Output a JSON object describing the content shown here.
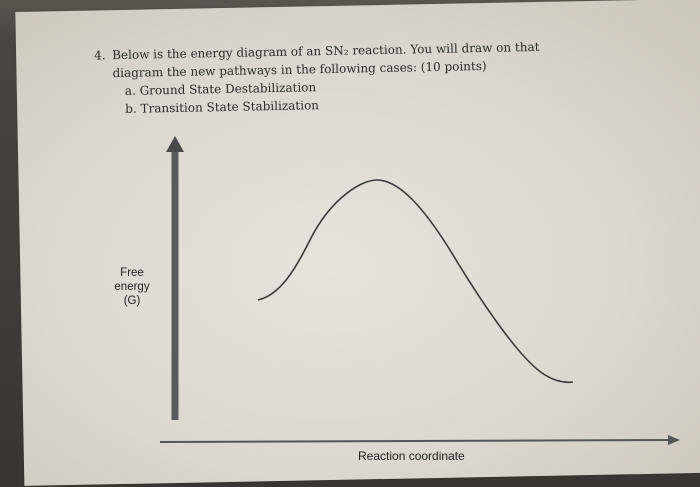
{
  "question": {
    "number": "4.",
    "intro_line1": "Below is the energy diagram of an SN₂ reaction. You will draw on that",
    "intro_line2": "diagram the new pathways in the following cases: (10 points)",
    "cases": [
      {
        "marker": "a.",
        "text": "Ground State Destabilization"
      },
      {
        "marker": "b.",
        "text": "Transition State Stabilization"
      }
    ]
  },
  "diagram": {
    "y_axis_label": [
      "Free",
      "energy",
      "(G)"
    ],
    "x_axis_label": "Reaction coordinate",
    "curve_description": "single-hump energy profile",
    "colors": {
      "axis": "#5a5a5a",
      "curve": "#3a3a3a"
    }
  }
}
